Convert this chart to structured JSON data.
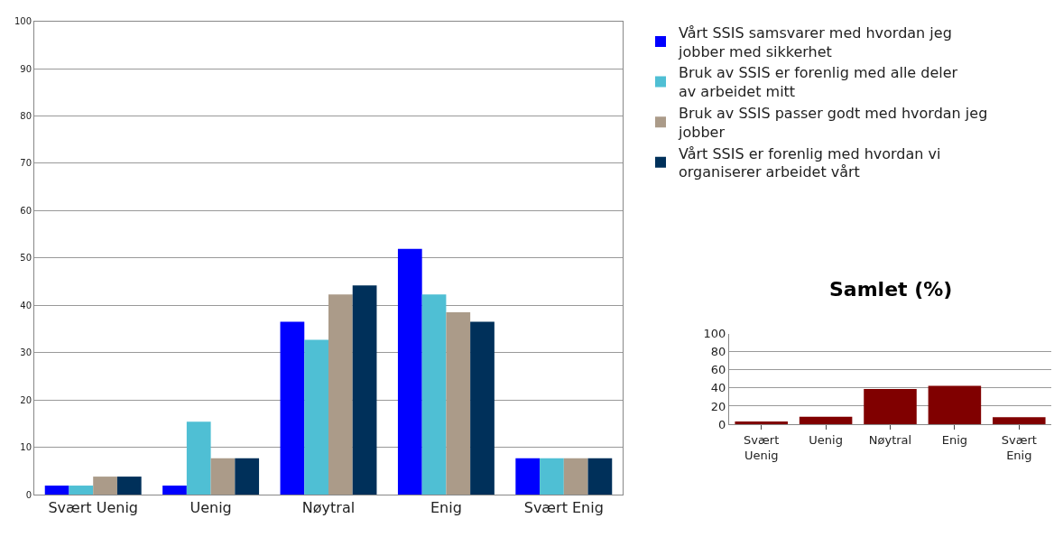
{
  "chart_data": [
    {
      "type": "bar",
      "categories": [
        "Svært Uenig",
        "Uenig",
        "Nøytral",
        "Enig",
        "Svært Enig"
      ],
      "ylim": [
        0,
        100
      ],
      "yticks": [
        0,
        10,
        20,
        30,
        40,
        50,
        60,
        70,
        80,
        90,
        100
      ],
      "grid": "y",
      "legend": "top right",
      "series": [
        {
          "name": "Vårt SSIS samsvarer med hvordan jeg jobber med sikkerhet",
          "color": "#0000ff",
          "values": [
            1.9,
            1.9,
            36.5,
            51.9,
            7.7
          ]
        },
        {
          "name": "Bruk av SSIS er forenlig med alle deler av arbeidet mitt",
          "color": "#4fbfd4",
          "values": [
            1.9,
            15.4,
            32.7,
            42.3,
            7.7
          ]
        },
        {
          "name": "Bruk av SSIS passer godt med hvordan jeg jobber",
          "color": "#ab9b89",
          "values": [
            3.8,
            7.7,
            42.3,
            38.5,
            7.7
          ]
        },
        {
          "name": "Vårt SSIS er forenlig med hvordan vi organiserer arbeidet vårt",
          "color": "#00305a",
          "values": [
            3.8,
            7.7,
            44.2,
            36.5,
            7.7
          ]
        }
      ]
    },
    {
      "type": "bar",
      "title": "Samlet (%)",
      "categories": [
        "Svært Uenig",
        "Uenig",
        "Nøytral",
        "Enig",
        "Svært Enig"
      ],
      "ylim": [
        0,
        100
      ],
      "yticks": [
        0,
        20,
        40,
        60,
        80,
        100
      ],
      "grid": "y",
      "series": [
        {
          "color": "#800000",
          "values": [
            2.9,
            8.2,
            38.9,
            42.3,
            7.7
          ]
        }
      ]
    }
  ]
}
